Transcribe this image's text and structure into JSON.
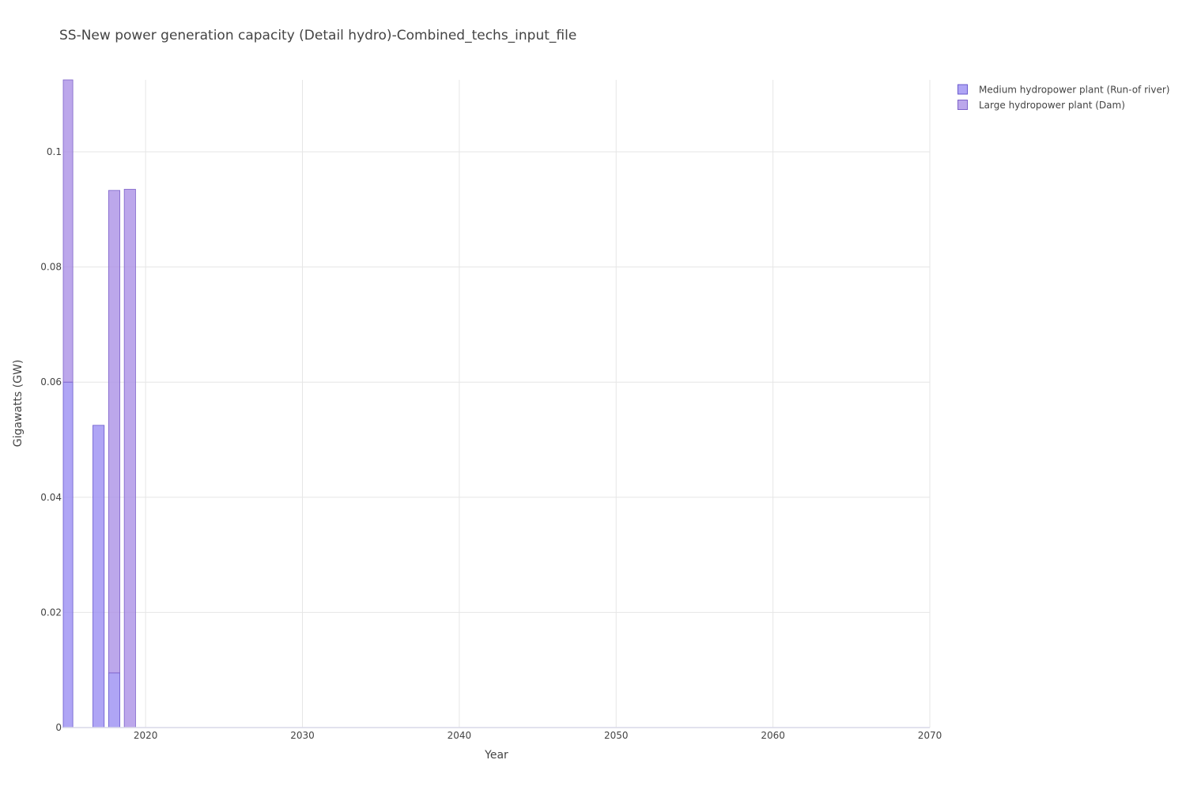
{
  "chart_data": {
    "type": "bar",
    "barmode": "stacked",
    "title": "SS-New power generation capacity (Detail hydro)-Combined_techs_input_file",
    "xlabel": "Year",
    "ylabel": "Gigawatts (GW)",
    "xlim": [
      2014.75,
      2070
    ],
    "ylim": [
      0,
      0.1125
    ],
    "xticks": [
      2020,
      2030,
      2040,
      2050,
      2060,
      2070
    ],
    "xtick_labels": [
      "2020",
      "2030",
      "2040",
      "2050",
      "2060",
      "2070"
    ],
    "yticks": [
      0,
      0.02,
      0.04,
      0.06,
      0.08,
      0.1
    ],
    "ytick_labels": [
      "0",
      "0.02",
      "0.04",
      "0.06",
      "0.08",
      "0.1"
    ],
    "grid": true,
    "legend_position": "top-right",
    "x": [
      2015,
      2016,
      2017,
      2018,
      2019
    ],
    "series": [
      {
        "name": "Medium hydropower plant (Run-of river)",
        "color": "#9b8ff2",
        "values": [
          0.06,
          0,
          0.0525,
          0.0095,
          0
        ]
      },
      {
        "name": "Large hydropower plant (Dam)",
        "color": "#ab91e6",
        "values": [
          0.0525,
          0,
          0,
          0.0838,
          0.0935
        ]
      }
    ]
  }
}
